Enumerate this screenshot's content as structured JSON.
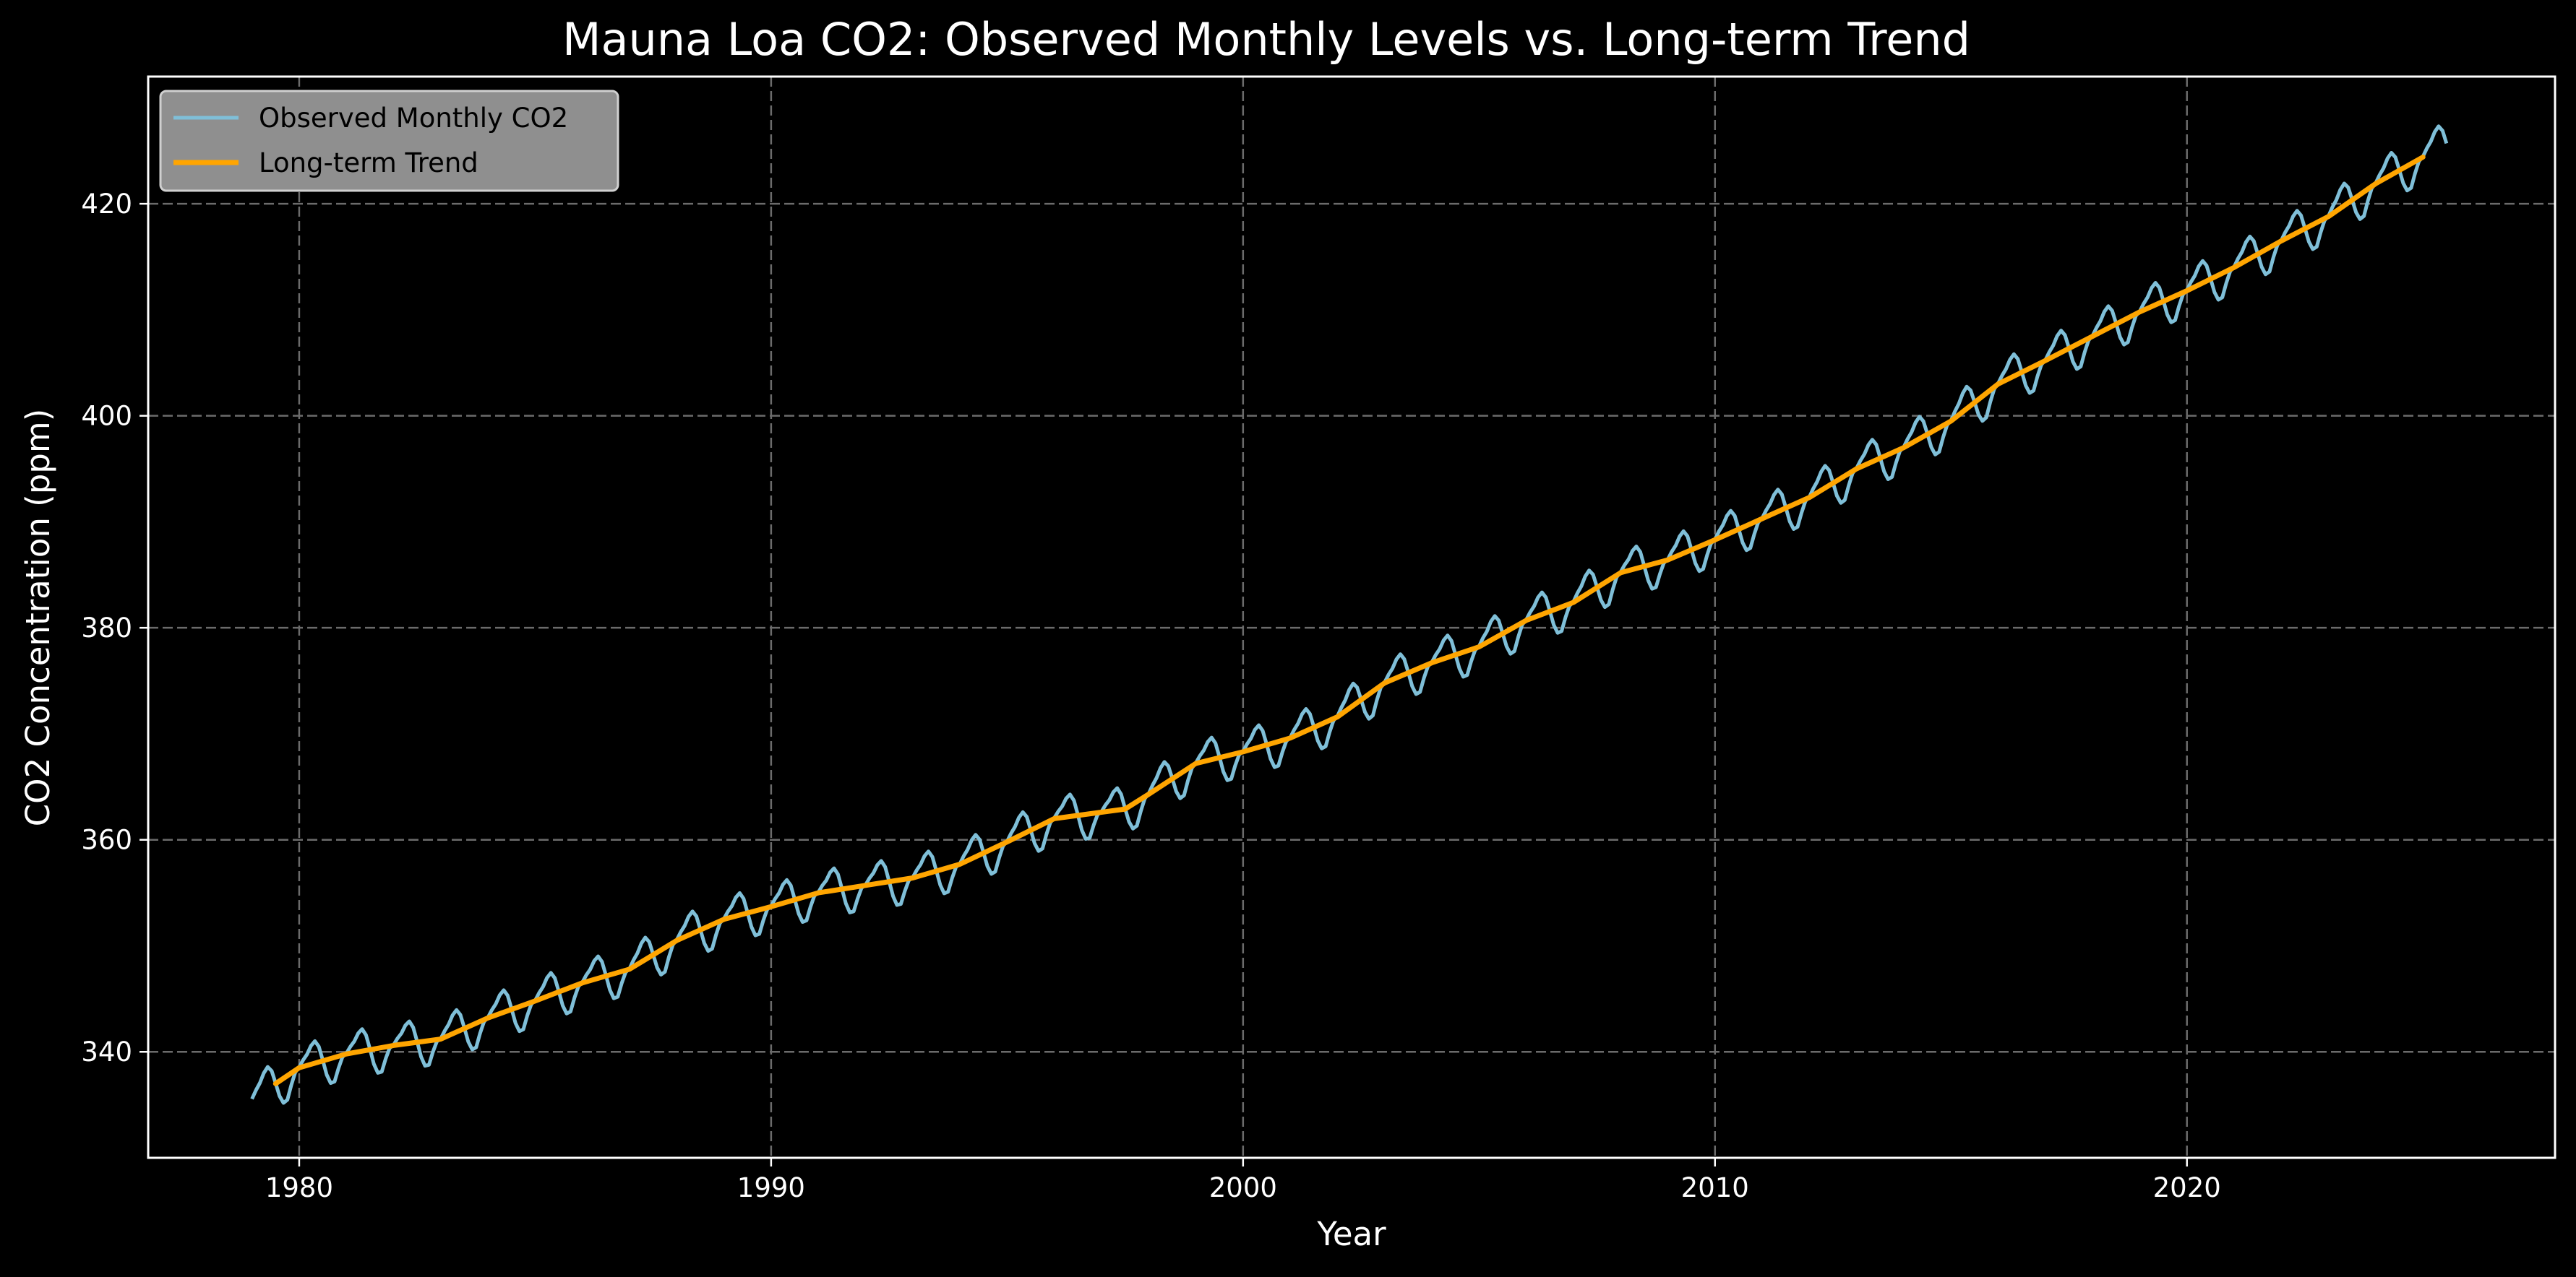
{
  "chart_data": {
    "type": "line",
    "title": "Mauna Loa CO2: Observed Monthly Levels vs. Long-term Trend",
    "xlabel": "Year",
    "ylabel": "CO2 Concentration (ppm)",
    "xlim": [
      1976.8,
      2027.8
    ],
    "ylim": [
      330,
      432
    ],
    "xticks": [
      1980,
      1990,
      2000,
      2010,
      2020
    ],
    "yticks": [
      340,
      360,
      380,
      400,
      420
    ],
    "xtick_labels": [
      "1980",
      "1990",
      "2000",
      "2010",
      "2020"
    ],
    "ytick_labels": [
      "340",
      "360",
      "380",
      "400",
      "420"
    ],
    "grid": true,
    "legend_position": "top-left",
    "background": "#000000",
    "series": [
      {
        "name": "Observed Monthly CO2",
        "color": "#7fbfd8",
        "seasonal_amplitude_ppm": 3.2,
        "x_start": 1979.0,
        "x_end": 2025.5
      },
      {
        "name": "Long-term Trend",
        "color": "#ffa500",
        "x": [
          1979.5,
          1980,
          1981,
          1982,
          1983,
          1984,
          1985,
          1986,
          1987,
          1988,
          1989,
          1990,
          1991,
          1992,
          1993,
          1994,
          1995,
          1996,
          1997,
          1997.5,
          1998,
          1999,
          2000,
          2001,
          2002,
          2003,
          2004,
          2005,
          2006,
          2007,
          2008,
          2009,
          2010,
          2011,
          2012,
          2013,
          2014,
          2015,
          2016,
          2017,
          2018,
          2019,
          2020,
          2021,
          2022,
          2023,
          2024,
          2025
        ],
        "y": [
          337.0,
          338.5,
          339.8,
          340.6,
          341.2,
          343.2,
          344.8,
          346.5,
          347.8,
          350.5,
          352.5,
          353.7,
          355.0,
          355.7,
          356.4,
          357.7,
          359.8,
          362.0,
          362.6,
          362.9,
          364.3,
          367.2,
          368.3,
          369.6,
          371.6,
          374.8,
          376.7,
          378.2,
          380.7,
          382.4,
          385.2,
          386.4,
          388.3,
          390.3,
          392.3,
          395.0,
          397.0,
          399.5,
          403.0,
          405.2,
          407.5,
          409.8,
          411.8,
          414.0,
          416.5,
          418.8,
          421.9,
          424.4
        ]
      }
    ]
  }
}
